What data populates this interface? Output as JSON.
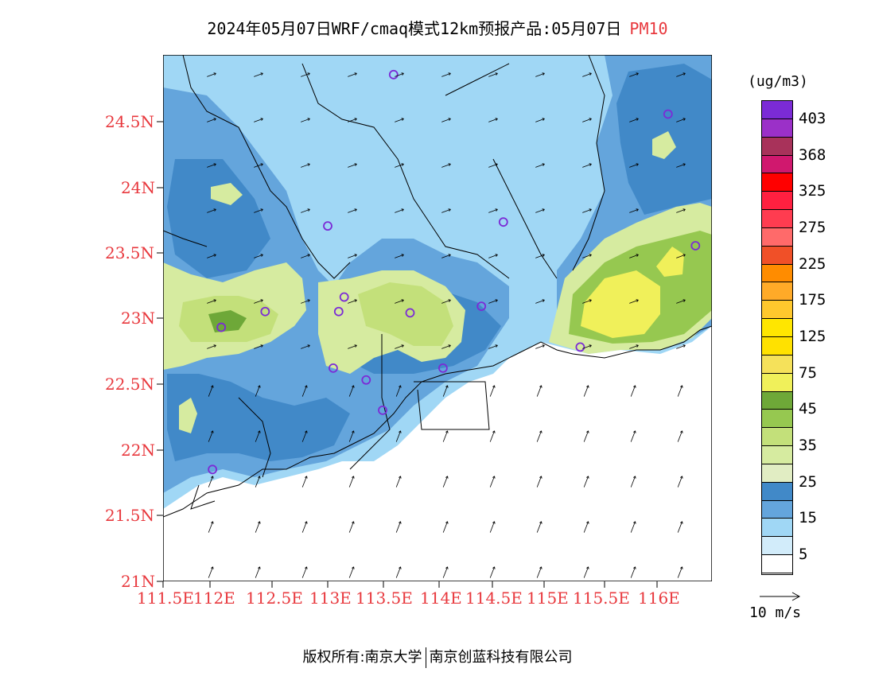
{
  "title": {
    "main": "2024年05月07日WRF/cmaq模式12km预报产品:05月07日",
    "species": "PM10"
  },
  "axes": {
    "y_ticks": [
      "24.5N",
      "24N",
      "23.5N",
      "23N",
      "22.5N",
      "22N",
      "21.5N",
      "21N"
    ],
    "x_ticks": [
      "111.5E",
      "112E",
      "112.5E",
      "113E",
      "113.5E",
      "114E",
      "114.5E",
      "115E",
      "115.5E",
      "116E"
    ]
  },
  "legend": {
    "unit": "(ug/m3)",
    "labels": [
      "403",
      "368",
      "325",
      "275",
      "225",
      "175",
      "125",
      "75",
      "45",
      "35",
      "25",
      "15",
      "5"
    ],
    "colors": [
      "#7b2bd6",
      "#9b30c8",
      "#a8325a",
      "#d0186e",
      "#ff0000",
      "#ff2040",
      "#ff3c50",
      "#ff6a6a",
      "#f05028",
      "#ff8c00",
      "#ffaa28",
      "#ffc82d",
      "#ffe600",
      "#ffe100",
      "#f5e15a",
      "#f0f05a",
      "#6ea838",
      "#96c850",
      "#c3e07a",
      "#d6eba0",
      "#e1edc3",
      "#4189c8",
      "#64a5dc",
      "#a0d7f5",
      "#d2ecfa",
      "#ffffff"
    ]
  },
  "vector_ref": "10 m/s",
  "footer": {
    "left": "版权所有:南京大学",
    "right": "南京创蓝科技有限公司"
  },
  "stations": [
    {
      "lon": 113.6,
      "lat": 24.85
    },
    {
      "lon": 116.1,
      "lat": 24.55
    },
    {
      "lon": 113.0,
      "lat": 23.7
    },
    {
      "lon": 114.6,
      "lat": 23.73
    },
    {
      "lon": 116.35,
      "lat": 23.55
    },
    {
      "lon": 112.43,
      "lat": 23.05
    },
    {
      "lon": 112.03,
      "lat": 22.93
    },
    {
      "lon": 113.1,
      "lat": 23.05
    },
    {
      "lon": 113.15,
      "lat": 23.16
    },
    {
      "lon": 113.75,
      "lat": 23.04
    },
    {
      "lon": 114.4,
      "lat": 23.09
    },
    {
      "lon": 115.3,
      "lat": 22.78
    },
    {
      "lon": 113.05,
      "lat": 22.62
    },
    {
      "lon": 113.35,
      "lat": 22.53
    },
    {
      "lon": 114.05,
      "lat": 22.62
    },
    {
      "lon": 113.5,
      "lat": 22.3
    },
    {
      "lon": 111.95,
      "lat": 21.85
    }
  ],
  "map_region": {
    "lon_min": 111.5,
    "lon_max": 116.5,
    "lat_min": 21.0,
    "lat_max": 25.0
  }
}
